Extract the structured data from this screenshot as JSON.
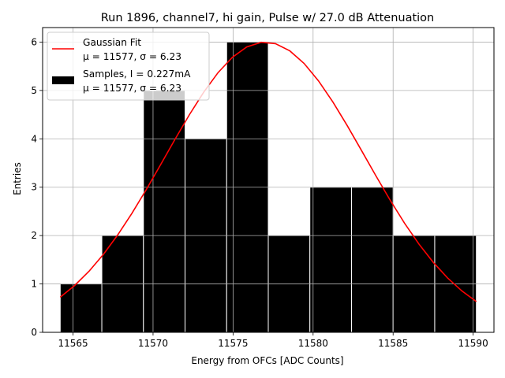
{
  "chart_data": {
    "type": "bar",
    "title": "Run 1896, channel7, hi gain, Pulse w/ 27.0 dB Attenuation",
    "xlabel": "Energy from OFCs [ADC Counts]",
    "ylabel": "Entries",
    "xlim": [
      11563.1,
      11591.3
    ],
    "ylim": [
      0,
      6.3
    ],
    "grid": true,
    "xticks": [
      "11565",
      "11570",
      "11575",
      "11580",
      "11585",
      "11590"
    ],
    "yticks": [
      "0",
      "1",
      "2",
      "3",
      "4",
      "5",
      "6"
    ],
    "bin_edges": [
      11564.2,
      11566.8,
      11569.4,
      11572.0,
      11574.6,
      11577.2,
      11579.8,
      11582.4,
      11585.0,
      11587.6,
      11590.2
    ],
    "counts": [
      1,
      2,
      5,
      4,
      6,
      2,
      3,
      3,
      2,
      2
    ],
    "fit": {
      "mu": 11577,
      "sigma": 6.23,
      "amplitude": 6.0,
      "x_range": [
        11564.2,
        11590.2
      ]
    },
    "legend": {
      "position": "top-left",
      "entries": [
        {
          "line1": "Gaussian Fit",
          "line2": "μ = 11577, σ = 6.23",
          "color": "#ff0000",
          "kind": "line"
        },
        {
          "line1": "Samples, I = 0.227mA",
          "line2": "μ = 11577, σ = 6.23",
          "color": "#000000",
          "kind": "patch"
        }
      ]
    },
    "colors": {
      "bars": "#000000",
      "bar_edge": "#ffffff",
      "fit": "#ff0000",
      "grid": "#b0b0b0"
    }
  }
}
